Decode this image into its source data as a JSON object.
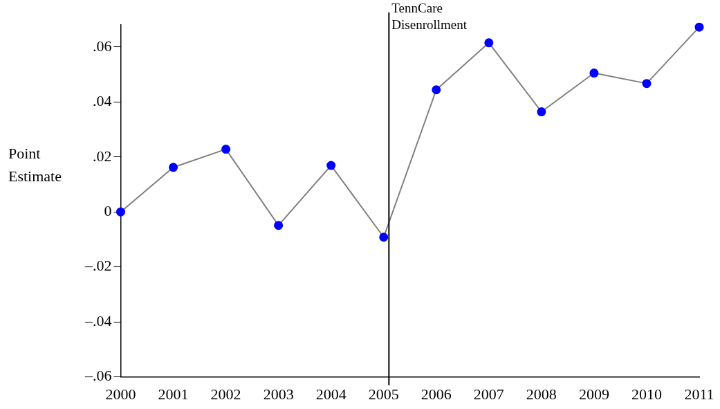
{
  "chart_data": {
    "type": "line",
    "ylabel": "Point Estimate",
    "x": [
      2000,
      2001,
      2002,
      2003,
      2004,
      2005,
      2006,
      2007,
      2008,
      2009,
      2010,
      2011
    ],
    "series": [
      {
        "color": "#808080",
        "colors": [
          "#0000ff",
          "#0000ff",
          "#0000ff",
          "#0000ff",
          "#0000ff",
          "#0000ff",
          "#0000ff",
          "#0000ff",
          "#0000ff",
          "#0000ff",
          "#0000ff",
          "#0000ff"
        ],
        "values": [
          0,
          0.0162,
          0.0228,
          -0.0049,
          0.0169,
          -0.0092,
          0.0444,
          0.0615,
          0.0364,
          0.0505,
          0.0467,
          0.0672
        ]
      }
    ],
    "marker": "circle",
    "xlim": [
      2000,
      2011
    ],
    "xticks": [
      2000,
      2001,
      2002,
      2003,
      2004,
      2005,
      2006,
      2007,
      2008,
      2009,
      2010,
      2011
    ],
    "ylim": [
      -0.06,
      0.068
    ],
    "yticks": [
      {
        "value": -0.06,
        "label": "–.06"
      },
      {
        "value": -0.04,
        "label": "–.04"
      },
      {
        "value": -0.02,
        "label": "–.02"
      },
      {
        "value": 0,
        "label": "0"
      },
      {
        "value": 0.02,
        "label": ".02"
      },
      {
        "value": 0.04,
        "label": ".04"
      },
      {
        "value": 0.06,
        "label": ".06"
      }
    ],
    "ref_lines": [
      {
        "axis": "x",
        "value": 2005.1,
        "label": "TennCare Disenrollment",
        "color": "#000000"
      }
    ],
    "grid": false,
    "legend": false
  }
}
